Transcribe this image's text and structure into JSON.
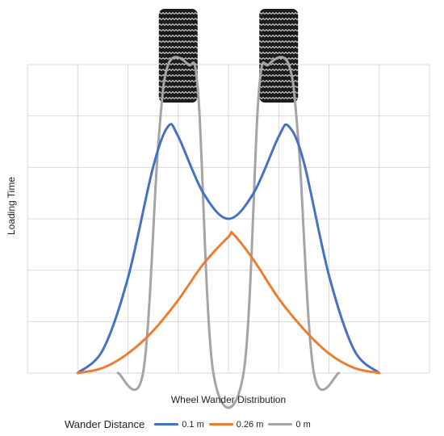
{
  "chart_data": {
    "type": "line",
    "title": "",
    "xlabel": "Wheel Wander Distribution",
    "ylabel": "Loading Time",
    "xlim": [
      0,
      8
    ],
    "ylim": [
      0,
      6
    ],
    "grid": true,
    "legend_title": "Wander Distance",
    "legend_position": "bottom",
    "decorations": [
      "tire-tread-icon",
      "tire-tread-icon"
    ],
    "series": [
      {
        "name": "0.1 m",
        "color": "#4472C4",
        "x": [
          1.0,
          1.5,
          2.0,
          2.5,
          2.8,
          3.0,
          3.5,
          4.0,
          4.5,
          5.0,
          5.2,
          5.5,
          6.0,
          6.5,
          7.0
        ],
        "y": [
          0.0,
          0.45,
          1.85,
          4.0,
          4.8,
          4.6,
          3.5,
          3.0,
          3.5,
          4.6,
          4.8,
          4.1,
          1.9,
          0.45,
          0.0
        ]
      },
      {
        "name": "0.26 m",
        "color": "#ED7D31",
        "x": [
          1.0,
          1.5,
          2.0,
          2.5,
          3.0,
          3.5,
          4.0,
          4.1,
          4.5,
          5.0,
          5.5,
          6.0,
          6.5,
          7.0
        ],
        "y": [
          0.0,
          0.1,
          0.38,
          0.82,
          1.42,
          2.12,
          2.65,
          2.7,
          2.2,
          1.45,
          0.85,
          0.38,
          0.1,
          0.0
        ]
      },
      {
        "name": "0 m",
        "color": "#A5A5A5",
        "x": [
          1.8,
          2.3,
          2.6,
          2.8,
          3.2,
          3.4,
          3.7,
          4.3,
          4.6,
          4.8,
          5.2,
          5.4,
          5.7,
          6.2
        ],
        "y": [
          0.0,
          0.0,
          4.4,
          6.0,
          6.0,
          5.4,
          0.0,
          0.0,
          5.4,
          6.0,
          6.0,
          4.4,
          0.0,
          0.0
        ]
      }
    ]
  }
}
